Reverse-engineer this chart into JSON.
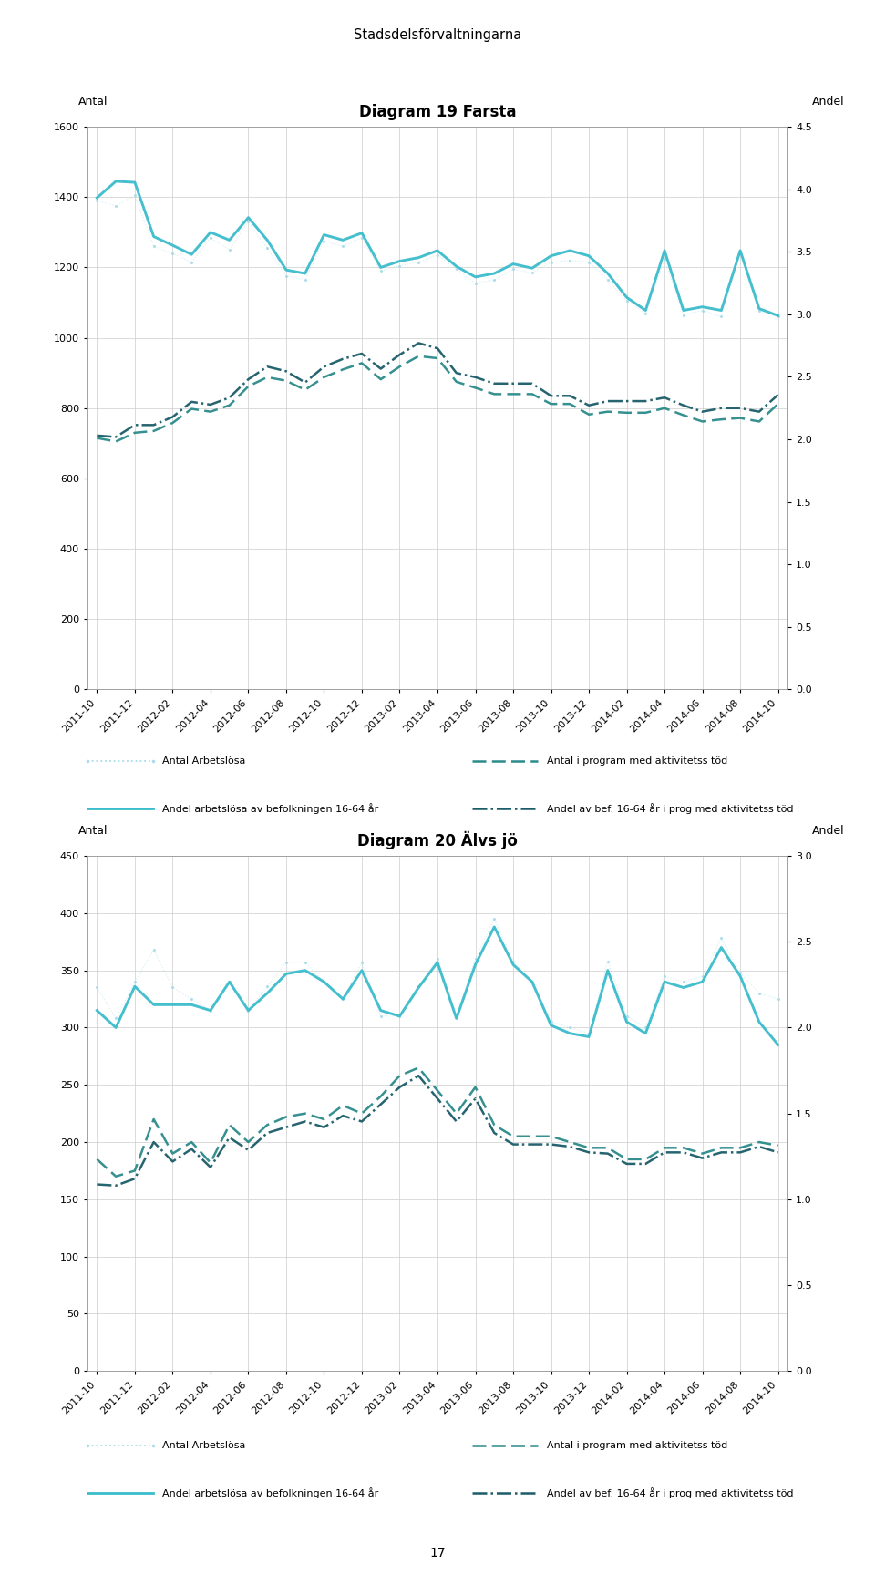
{
  "super_title": "Stadsdelsförvaltningarna",
  "title1": "Diagram 19 Farsta",
  "title2": "Diagram 20 Älvs jö",
  "ylabel_left": "Antal",
  "ylabel_right": "Andel",
  "x_labels_bimonthly": [
    "2011-10",
    "2011-12",
    "2012-02",
    "2012-04",
    "2012-06",
    "2012-08",
    "2012-10",
    "2012-12",
    "2013-02",
    "2013-04",
    "2013-06",
    "2013-08",
    "2013-10",
    "2013-12",
    "2014-02",
    "2014-04",
    "2014-06",
    "2014-08",
    "2014-10"
  ],
  "chart1": {
    "ylim_left": [
      0,
      1600
    ],
    "ylim_right": [
      0,
      4.5
    ],
    "yticks_left": [
      0,
      200,
      400,
      600,
      800,
      1000,
      1200,
      1400,
      1600
    ],
    "yticks_right": [
      0,
      0.5,
      1.0,
      1.5,
      2.0,
      2.5,
      3.0,
      3.5,
      4.0,
      4.5
    ],
    "antal_arbetslosa": [
      1390,
      1375,
      1405,
      1260,
      1240,
      1215,
      1285,
      1250,
      1330,
      1255,
      1175,
      1165,
      1275,
      1260,
      1285,
      1190,
      1205,
      1215,
      1235,
      1195,
      1155,
      1165,
      1195,
      1185,
      1215,
      1220,
      1215,
      1165,
      1105,
      1070,
      1225,
      1065,
      1078,
      1060,
      1240,
      1078,
      1060
    ],
    "andel_arbetslosa": [
      1398,
      1445,
      1442,
      1288,
      1263,
      1237,
      1300,
      1278,
      1342,
      1278,
      1193,
      1183,
      1293,
      1278,
      1298,
      1200,
      1218,
      1228,
      1248,
      1203,
      1173,
      1183,
      1210,
      1198,
      1233,
      1248,
      1233,
      1183,
      1115,
      1078,
      1248,
      1078,
      1088,
      1078,
      1248,
      1083,
      1063
    ],
    "antal_prog": [
      715,
      705,
      730,
      735,
      758,
      798,
      790,
      808,
      862,
      888,
      878,
      852,
      888,
      910,
      928,
      882,
      918,
      948,
      942,
      875,
      858,
      840,
      840,
      840,
      812,
      812,
      782,
      790,
      787,
      787,
      800,
      780,
      762,
      768,
      772,
      762,
      812
    ],
    "andel_prog": [
      722,
      718,
      752,
      752,
      775,
      818,
      810,
      830,
      882,
      918,
      905,
      873,
      918,
      940,
      955,
      912,
      952,
      985,
      970,
      900,
      888,
      870,
      870,
      870,
      835,
      835,
      808,
      820,
      820,
      820,
      830,
      808,
      790,
      800,
      800,
      790,
      838
    ]
  },
  "chart2": {
    "ylim_left": [
      0,
      450
    ],
    "ylim_right": [
      0,
      3.0
    ],
    "yticks_left": [
      0,
      50,
      100,
      150,
      200,
      250,
      300,
      350,
      400,
      450
    ],
    "yticks_right": [
      0,
      0.5,
      1.0,
      1.5,
      2.0,
      2.5,
      3.0
    ],
    "antal_arbetslosa": [
      335,
      308,
      340,
      368,
      335,
      325,
      315,
      340,
      315,
      336,
      357,
      357,
      340,
      325,
      357,
      310,
      310,
      336,
      360,
      310,
      360,
      395,
      358,
      340,
      305,
      300,
      295,
      358,
      310,
      300,
      345,
      340,
      345,
      378,
      348,
      330,
      325
    ],
    "andel_arbetslosa": [
      315,
      300,
      336,
      320,
      320,
      320,
      315,
      340,
      315,
      330,
      347,
      350,
      340,
      325,
      350,
      315,
      310,
      335,
      357,
      308,
      355,
      388,
      355,
      340,
      302,
      295,
      292,
      350,
      305,
      295,
      340,
      335,
      340,
      370,
      345,
      305,
      285
    ],
    "antal_prog": [
      185,
      170,
      175,
      220,
      190,
      200,
      182,
      215,
      200,
      215,
      222,
      225,
      220,
      232,
      225,
      240,
      258,
      265,
      245,
      225,
      248,
      215,
      205,
      205,
      205,
      200,
      195,
      195,
      185,
      185,
      195,
      195,
      190,
      195,
      195,
      200,
      197
    ],
    "andel_prog": [
      163,
      162,
      168,
      200,
      183,
      194,
      178,
      204,
      193,
      208,
      213,
      218,
      213,
      223,
      218,
      233,
      248,
      258,
      238,
      218,
      238,
      208,
      198,
      198,
      198,
      196,
      191,
      190,
      181,
      181,
      191,
      191,
      186,
      191,
      191,
      196,
      191
    ]
  },
  "legend_label1": "Antal Arbetslösa",
  "legend_label2": "Antal i program med aktivitetss töd",
  "legend_label3": "Andel arbetslösa av befolkningen 16-64 år",
  "legend_label4": "Andel av bef. 16-64 år i prog med aktivitetss töd",
  "col_light": "#A8DCE8",
  "col_medium": "#3BBCCC",
  "col_dark_dashed": "#2B8A8A",
  "col_dark_solid": "#1A5C68",
  "page_number": "17"
}
